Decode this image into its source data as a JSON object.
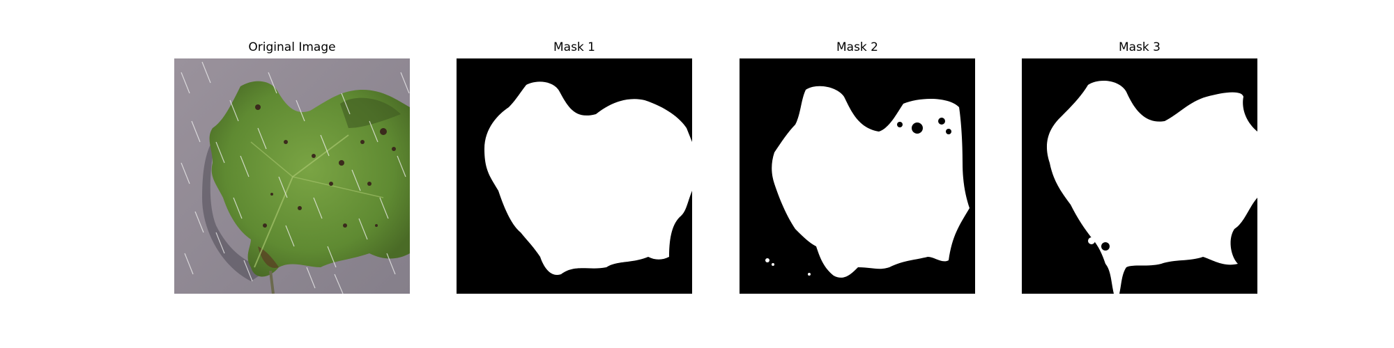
{
  "figure": {
    "panels": [
      {
        "title": "Original Image",
        "kind": "photo",
        "subject": "leaf"
      },
      {
        "title": "Mask 1",
        "kind": "binary-mask"
      },
      {
        "title": "Mask 2",
        "kind": "binary-mask"
      },
      {
        "title": "Mask 3",
        "kind": "binary-mask"
      }
    ]
  },
  "colors": {
    "background": "#ffffff",
    "mask_background": "#000000",
    "mask_foreground": "#ffffff",
    "surface_gray": "#8f8993",
    "leaf_green": "#6f9a3a",
    "leaf_dark": "#3f5a22",
    "lesion": "#3b2a1c"
  }
}
